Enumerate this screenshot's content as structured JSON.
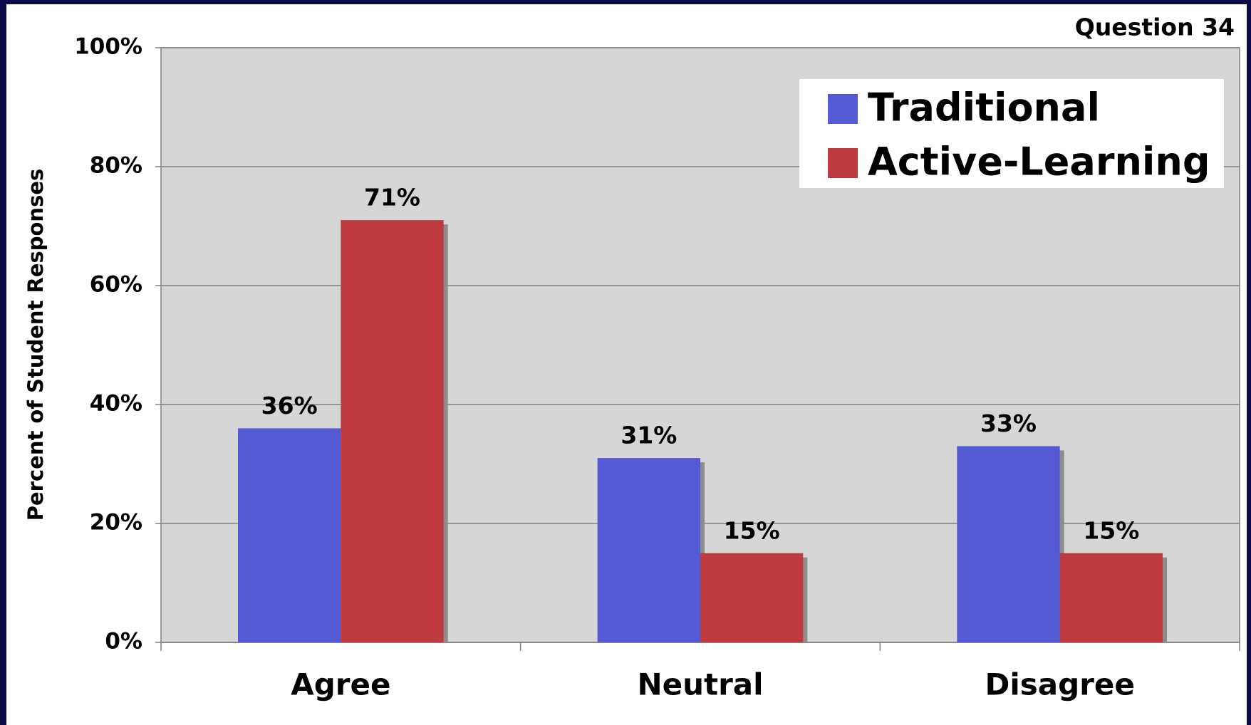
{
  "chart_data": {
    "type": "bar",
    "title": "Question 34",
    "ylabel": "Percent of Student Responses",
    "categories": [
      "Agree",
      "Neutral",
      "Disagree"
    ],
    "series": [
      {
        "name": "Traditional",
        "color": "#545ad4",
        "values": [
          36,
          31,
          33
        ],
        "value_labels": [
          "36%",
          "31%",
          "33%"
        ]
      },
      {
        "name": "Active-Learning",
        "color": "#bd3b3e",
        "values": [
          71,
          15,
          15
        ],
        "value_labels": [
          "71%",
          "15%",
          "15%"
        ]
      }
    ],
    "ylim": [
      0,
      100
    ],
    "yticks": [
      {
        "value": 0,
        "label": "0%"
      },
      {
        "value": 20,
        "label": "20%"
      },
      {
        "value": 40,
        "label": "40%"
      },
      {
        "value": 60,
        "label": "60%"
      },
      {
        "value": 80,
        "label": "80%"
      },
      {
        "value": 100,
        "label": "100%"
      }
    ],
    "grid": true,
    "legend": "top-right"
  }
}
